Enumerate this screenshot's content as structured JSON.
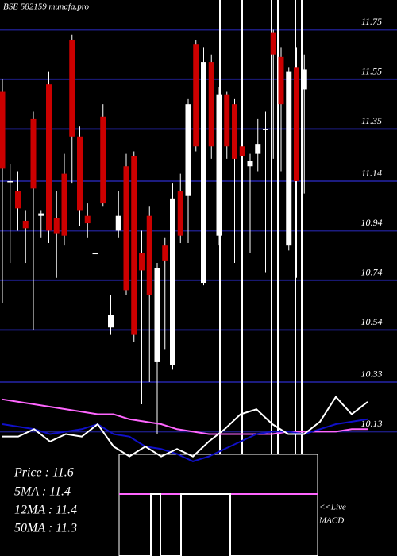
{
  "chart_data": {
    "type": "candlestick",
    "title": "BSE 582159 munafa.pro",
    "ylim": [
      10.0,
      11.87
    ],
    "yticks": [
      11.75,
      11.55,
      11.35,
      11.14,
      10.94,
      10.74,
      10.54,
      10.33,
      10.13
    ],
    "grid": true,
    "grid_color": "#1c1c80",
    "up_color": "#ffffff",
    "down_color": "#cc0000",
    "open": [
      11.5,
      11.14,
      11.1,
      10.98,
      11.39,
      11.0,
      11.53,
      10.99,
      11.17,
      11.71,
      11.32,
      11.0,
      10.85,
      11.4,
      10.55,
      10.94,
      11.2,
      11.24,
      10.85,
      11.0,
      10.41,
      10.88,
      10.4,
      11.1,
      11.08,
      11.69,
      10.73,
      11.62,
      10.92,
      11.49,
      11.45,
      11.28,
      11.2,
      11.25,
      11.35,
      11.74,
      11.64,
      10.88,
      11.6,
      11.51
    ],
    "high": [
      11.55,
      11.21,
      11.18,
      11.02,
      11.42,
      11.02,
      11.58,
      11.1,
      11.25,
      11.73,
      11.36,
      11.05,
      10.85,
      11.45,
      10.68,
      11.1,
      11.25,
      11.26,
      10.94,
      11.04,
      10.81,
      10.91,
      11.13,
      11.17,
      11.47,
      11.71,
      11.68,
      11.65,
      11.52,
      11.5,
      11.47,
      11.36,
      11.25,
      11.39,
      11.42,
      11.75,
      11.68,
      11.6,
      11.68,
      11.65
    ],
    "low": [
      10.65,
      10.81,
      10.94,
      10.81,
      10.54,
      10.91,
      10.89,
      10.75,
      10.88,
      11.13,
      10.96,
      10.91,
      10.85,
      11.04,
      10.52,
      10.91,
      10.68,
      10.49,
      10.24,
      10.33,
      10.12,
      10.46,
      10.38,
      10.89,
      10.89,
      11.26,
      10.72,
      11.23,
      10.88,
      11.23,
      10.81,
      10.73,
      10.85,
      11.18,
      10.77,
      11.23,
      11.18,
      10.86,
      10.75,
      11.09
    ],
    "close": [
      11.19,
      11.14,
      11.03,
      10.95,
      11.11,
      11.01,
      10.94,
      10.93,
      10.92,
      11.32,
      11.02,
      10.97,
      10.85,
      11.05,
      10.6,
      11.0,
      10.7,
      10.52,
      10.78,
      10.68,
      10.79,
      10.82,
      11.07,
      10.92,
      11.45,
      11.28,
      11.62,
      11.28,
      11.49,
      11.28,
      11.23,
      11.24,
      11.22,
      11.29,
      11.35,
      11.65,
      11.45,
      11.58,
      11.14,
      11.59
    ],
    "series": [
      {
        "color": "#ff66ff",
        "values": [
          10.26,
          10.25,
          10.24,
          10.23,
          10.22,
          10.21,
          10.2,
          10.2,
          10.18,
          10.17,
          10.16,
          10.14,
          10.13,
          10.12,
          10.12,
          10.12,
          10.12,
          10.12,
          10.13,
          10.13,
          10.13,
          10.13,
          10.14,
          10.14
        ]
      },
      {
        "color": "#1010c8",
        "values": [
          10.16,
          10.15,
          10.14,
          10.12,
          10.13,
          10.14,
          10.16,
          10.12,
          10.11,
          10.07,
          10.06,
          10.04,
          10.01,
          10.03,
          10.06,
          10.09,
          10.12,
          10.13,
          10.13,
          10.12,
          10.14,
          10.16,
          10.17,
          10.18
        ]
      },
      {
        "color": "#ffffff",
        "values": [
          10.11,
          10.11,
          10.14,
          10.09,
          10.12,
          10.11,
          10.16,
          10.07,
          10.03,
          10.07,
          10.03,
          10.06,
          10.03,
          10.09,
          10.14,
          10.2,
          10.22,
          10.16,
          10.12,
          10.12,
          10.17,
          10.27,
          10.2,
          10.25
        ]
      }
    ],
    "info": [
      "Price   : 11.6",
      "5MA : 11.4",
      "12MA : 11.4",
      "50MA : 11.3"
    ],
    "macd_label": [
      "<<Live",
      "MACD"
    ]
  }
}
